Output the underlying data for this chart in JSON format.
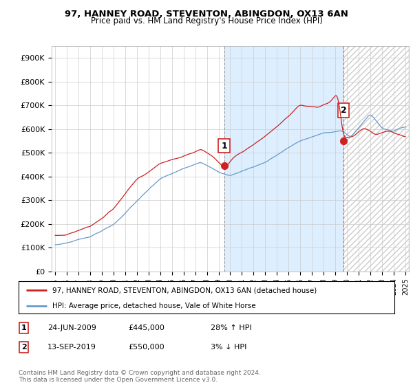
{
  "title1": "97, HANNEY ROAD, STEVENTON, ABINGDON, OX13 6AN",
  "title2": "Price paid vs. HM Land Registry's House Price Index (HPI)",
  "yticks": [
    0,
    100000,
    200000,
    300000,
    400000,
    500000,
    600000,
    700000,
    800000,
    900000
  ],
  "ytick_labels": [
    "£0",
    "£100K",
    "£200K",
    "£300K",
    "£400K",
    "£500K",
    "£600K",
    "£700K",
    "£800K",
    "£900K"
  ],
  "ylim": [
    0,
    950000
  ],
  "xlim_left": 1994.7,
  "xlim_right": 2025.3,
  "red_line_color": "#cc2222",
  "blue_line_color": "#6699cc",
  "blue_fill_color": "#ddeeff",
  "hatch_color": "#cccccc",
  "sale1_date_num": 2009.47,
  "sale1_price": 445000,
  "sale1_label": "1",
  "sale2_date_num": 2019.7,
  "sale2_price": 550000,
  "sale2_label": "2",
  "legend_line1": "97, HANNEY ROAD, STEVENTON, ABINGDON, OX13 6AN (detached house)",
  "legend_line2": "HPI: Average price, detached house, Vale of White Horse",
  "table_row1": [
    "1",
    "24-JUN-2009",
    "£445,000",
    "28% ↑ HPI"
  ],
  "table_row2": [
    "2",
    "13-SEP-2019",
    "£550,000",
    "3% ↓ HPI"
  ],
  "footer": "Contains HM Land Registry data © Crown copyright and database right 2024.\nThis data is licensed under the Open Government Licence v3.0.",
  "background_color": "#ffffff",
  "grid_color": "#cccccc"
}
